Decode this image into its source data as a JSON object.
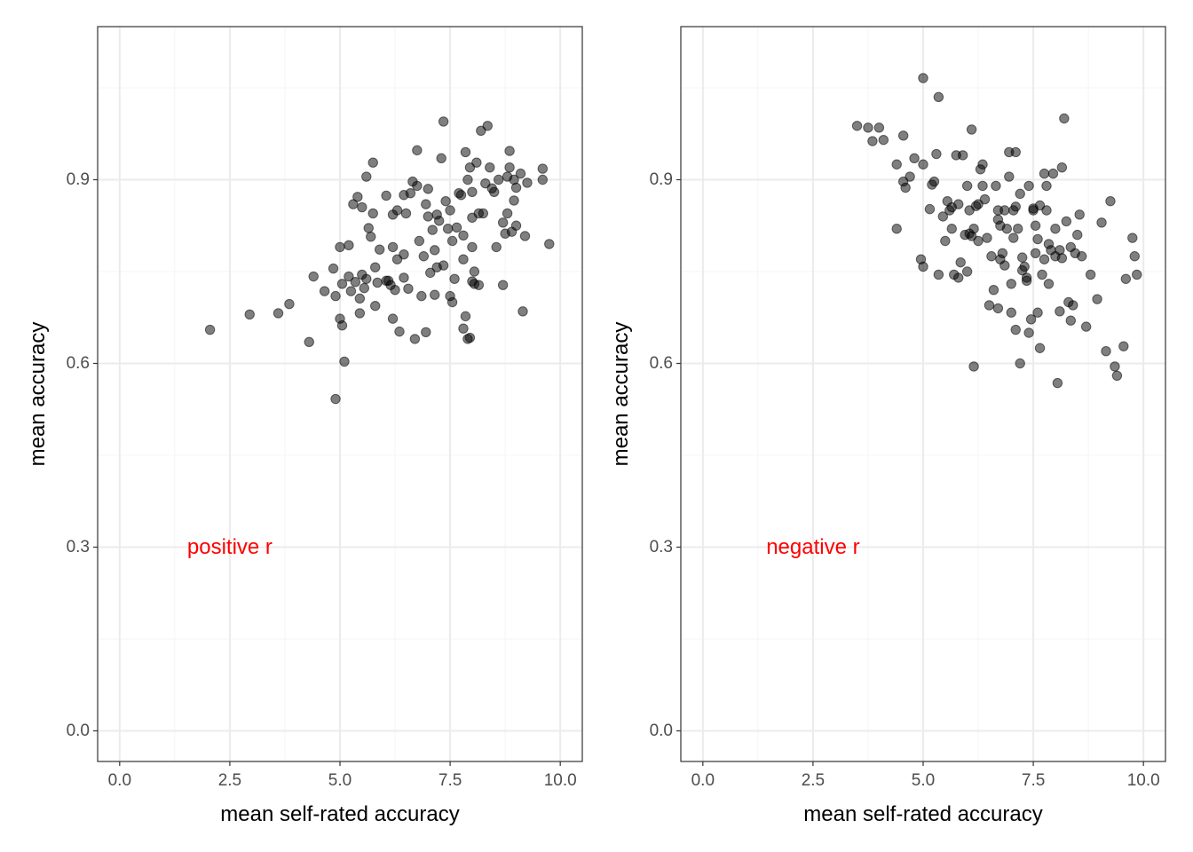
{
  "colors": {
    "panel_border": "#333333",
    "grid_major": "#ebebeb",
    "grid_minor": "#f5f5f5",
    "point_fill": "#000000",
    "annotation": "#ff0000"
  },
  "chart_data": [
    {
      "type": "scatter",
      "xlabel": "mean self-rated accuracy",
      "ylabel": "mean accuracy",
      "xlim": [
        -0.5,
        10.5
      ],
      "ylim": [
        -0.05,
        1.15
      ],
      "xticks": [
        "0.0",
        "2.5",
        "5.0",
        "7.5",
        "10.0"
      ],
      "yticks": [
        "0.0",
        "0.3",
        "0.6",
        "0.9"
      ],
      "grid": true,
      "annotation": {
        "text": "positive r",
        "x": 2.5,
        "y": 0.3
      },
      "points": [
        [
          2.05,
          0.655
        ],
        [
          2.95,
          0.68
        ],
        [
          3.6,
          0.682
        ],
        [
          3.85,
          0.697
        ],
        [
          4.3,
          0.635
        ],
        [
          4.4,
          0.742
        ],
        [
          4.65,
          0.718
        ],
        [
          4.85,
          0.755
        ],
        [
          4.9,
          0.71
        ],
        [
          4.9,
          0.542
        ],
        [
          5.0,
          0.79
        ],
        [
          5.0,
          0.673
        ],
        [
          5.05,
          0.73
        ],
        [
          5.05,
          0.662
        ],
        [
          5.1,
          0.603
        ],
        [
          5.2,
          0.793
        ],
        [
          5.2,
          0.742
        ],
        [
          5.25,
          0.718
        ],
        [
          5.3,
          0.86
        ],
        [
          5.35,
          0.733
        ],
        [
          5.4,
          0.872
        ],
        [
          5.45,
          0.706
        ],
        [
          5.45,
          0.682
        ],
        [
          5.5,
          0.745
        ],
        [
          5.5,
          0.855
        ],
        [
          5.55,
          0.723
        ],
        [
          5.6,
          0.905
        ],
        [
          5.6,
          0.738
        ],
        [
          5.65,
          0.821
        ],
        [
          5.7,
          0.807
        ],
        [
          5.75,
          0.928
        ],
        [
          5.75,
          0.845
        ],
        [
          5.8,
          0.694
        ],
        [
          5.8,
          0.757
        ],
        [
          5.85,
          0.732
        ],
        [
          5.9,
          0.786
        ],
        [
          6.05,
          0.874
        ],
        [
          6.1,
          0.735
        ],
        [
          6.15,
          0.728
        ],
        [
          6.2,
          0.843
        ],
        [
          6.2,
          0.79
        ],
        [
          6.2,
          0.673
        ],
        [
          6.25,
          0.72
        ],
        [
          6.3,
          0.85
        ],
        [
          6.3,
          0.77
        ],
        [
          6.35,
          0.652
        ],
        [
          6.45,
          0.875
        ],
        [
          6.45,
          0.778
        ],
        [
          6.45,
          0.74
        ],
        [
          6.5,
          0.845
        ],
        [
          6.55,
          0.722
        ],
        [
          6.6,
          0.878
        ],
        [
          6.65,
          0.897
        ],
        [
          6.7,
          0.64
        ],
        [
          6.75,
          0.948
        ],
        [
          6.75,
          0.89
        ],
        [
          6.8,
          0.8
        ],
        [
          6.85,
          0.71
        ],
        [
          6.9,
          0.775
        ],
        [
          6.95,
          0.651
        ],
        [
          6.95,
          0.86
        ],
        [
          7.0,
          0.885
        ],
        [
          7.0,
          0.84
        ],
        [
          7.05,
          0.748
        ],
        [
          7.1,
          0.818
        ],
        [
          7.15,
          0.712
        ],
        [
          7.15,
          0.785
        ],
        [
          7.2,
          0.757
        ],
        [
          7.2,
          0.843
        ],
        [
          7.25,
          0.833
        ],
        [
          7.3,
          0.935
        ],
        [
          7.35,
          0.995
        ],
        [
          7.35,
          0.76
        ],
        [
          7.4,
          0.865
        ],
        [
          7.45,
          0.82
        ],
        [
          7.5,
          0.85
        ],
        [
          7.55,
          0.7
        ],
        [
          7.55,
          0.8
        ],
        [
          7.6,
          0.738
        ],
        [
          7.65,
          0.822
        ],
        [
          7.7,
          0.878
        ],
        [
          7.75,
          0.875
        ],
        [
          7.8,
          0.657
        ],
        [
          7.8,
          0.77
        ],
        [
          7.8,
          0.809
        ],
        [
          7.85,
          0.945
        ],
        [
          7.85,
          0.677
        ],
        [
          7.9,
          0.9
        ],
        [
          7.9,
          0.64
        ],
        [
          7.95,
          0.642
        ],
        [
          7.95,
          0.92
        ],
        [
          8.0,
          0.88
        ],
        [
          8.0,
          0.838
        ],
        [
          8.0,
          0.79
        ],
        [
          8.0,
          0.734
        ],
        [
          8.05,
          0.73
        ],
        [
          8.05,
          0.75
        ],
        [
          8.1,
          0.928
        ],
        [
          8.15,
          0.845
        ],
        [
          8.15,
          0.728
        ],
        [
          8.2,
          0.98
        ],
        [
          8.25,
          0.845
        ],
        [
          8.3,
          0.894
        ],
        [
          8.35,
          0.988
        ],
        [
          8.4,
          0.92
        ],
        [
          8.45,
          0.886
        ],
        [
          8.5,
          0.88
        ],
        [
          8.55,
          0.79
        ],
        [
          8.6,
          0.9
        ],
        [
          8.7,
          0.728
        ],
        [
          8.7,
          0.83
        ],
        [
          8.75,
          0.812
        ],
        [
          8.8,
          0.905
        ],
        [
          8.8,
          0.845
        ],
        [
          8.85,
          0.947
        ],
        [
          8.85,
          0.92
        ],
        [
          8.9,
          0.815
        ],
        [
          8.95,
          0.866
        ],
        [
          8.95,
          0.9
        ],
        [
          9.0,
          0.887
        ],
        [
          9.0,
          0.825
        ],
        [
          9.1,
          0.91
        ],
        [
          9.15,
          0.685
        ],
        [
          9.2,
          0.808
        ],
        [
          9.25,
          0.895
        ],
        [
          9.6,
          0.918
        ],
        [
          9.6,
          0.9
        ],
        [
          9.75,
          0.795
        ],
        [
          6.05,
          0.735
        ],
        [
          7.5,
          0.71
        ]
      ]
    },
    {
      "type": "scatter",
      "xlabel": "mean self-rated accuracy",
      "ylabel": "mean accuracy",
      "xlim": [
        -0.5,
        10.5
      ],
      "ylim": [
        -0.05,
        1.15
      ],
      "xticks": [
        "0.0",
        "2.5",
        "5.0",
        "7.5",
        "10.0"
      ],
      "yticks": [
        "0.0",
        "0.3",
        "0.6",
        "0.9"
      ],
      "grid": true,
      "annotation": {
        "text": "negative r",
        "x": 2.5,
        "y": 0.3
      },
      "points": [
        [
          3.5,
          0.988
        ],
        [
          3.75,
          0.985
        ],
        [
          3.85,
          0.963
        ],
        [
          4.0,
          0.985
        ],
        [
          4.1,
          0.965
        ],
        [
          4.4,
          0.925
        ],
        [
          4.4,
          0.82
        ],
        [
          4.55,
          0.972
        ],
        [
          4.55,
          0.897
        ],
        [
          4.6,
          0.887
        ],
        [
          4.7,
          0.905
        ],
        [
          4.8,
          0.935
        ],
        [
          4.95,
          0.77
        ],
        [
          5.0,
          0.925
        ],
        [
          5.0,
          0.758
        ],
        [
          5.0,
          1.066
        ],
        [
          5.15,
          0.852
        ],
        [
          5.2,
          0.892
        ],
        [
          5.25,
          0.897
        ],
        [
          5.3,
          0.942
        ],
        [
          5.35,
          1.035
        ],
        [
          5.35,
          0.745
        ],
        [
          5.45,
          0.84
        ],
        [
          5.5,
          0.8
        ],
        [
          5.55,
          0.865
        ],
        [
          5.6,
          0.85
        ],
        [
          5.65,
          0.82
        ],
        [
          5.65,
          0.855
        ],
        [
          5.7,
          0.745
        ],
        [
          5.75,
          0.94
        ],
        [
          5.8,
          0.86
        ],
        [
          5.8,
          0.74
        ],
        [
          5.85,
          0.765
        ],
        [
          5.9,
          0.94
        ],
        [
          5.95,
          0.81
        ],
        [
          6.0,
          0.75
        ],
        [
          6.0,
          0.89
        ],
        [
          6.05,
          0.85
        ],
        [
          6.05,
          0.812
        ],
        [
          6.1,
          0.808
        ],
        [
          6.1,
          0.982
        ],
        [
          6.15,
          0.595
        ],
        [
          6.15,
          0.82
        ],
        [
          6.2,
          0.857
        ],
        [
          6.25,
          0.86
        ],
        [
          6.25,
          0.8
        ],
        [
          6.3,
          0.917
        ],
        [
          6.35,
          0.925
        ],
        [
          6.35,
          0.89
        ],
        [
          6.4,
          0.868
        ],
        [
          6.45,
          0.805
        ],
        [
          6.5,
          0.695
        ],
        [
          6.55,
          0.775
        ],
        [
          6.6,
          0.72
        ],
        [
          6.65,
          0.89
        ],
        [
          6.7,
          0.85
        ],
        [
          6.7,
          0.835
        ],
        [
          6.7,
          0.69
        ],
        [
          6.75,
          0.825
        ],
        [
          6.75,
          0.77
        ],
        [
          6.8,
          0.78
        ],
        [
          6.85,
          0.85
        ],
        [
          6.85,
          0.76
        ],
        [
          6.9,
          0.82
        ],
        [
          6.95,
          0.945
        ],
        [
          6.95,
          0.905
        ],
        [
          7.0,
          0.73
        ],
        [
          7.0,
          0.683
        ],
        [
          7.05,
          0.85
        ],
        [
          7.05,
          0.805
        ],
        [
          7.1,
          0.945
        ],
        [
          7.1,
          0.856
        ],
        [
          7.1,
          0.655
        ],
        [
          7.15,
          0.82
        ],
        [
          7.2,
          0.877
        ],
        [
          7.2,
          0.6
        ],
        [
          7.25,
          0.773
        ],
        [
          7.25,
          0.752
        ],
        [
          7.3,
          0.758
        ],
        [
          7.35,
          0.74
        ],
        [
          7.35,
          0.735
        ],
        [
          7.4,
          0.89
        ],
        [
          7.4,
          0.65
        ],
        [
          7.45,
          0.672
        ],
        [
          7.5,
          0.85
        ],
        [
          7.5,
          0.853
        ],
        [
          7.55,
          0.825
        ],
        [
          7.55,
          0.78
        ],
        [
          7.6,
          0.803
        ],
        [
          7.6,
          0.683
        ],
        [
          7.65,
          0.858
        ],
        [
          7.65,
          0.625
        ],
        [
          7.7,
          0.745
        ],
        [
          7.75,
          0.91
        ],
        [
          7.75,
          0.77
        ],
        [
          7.8,
          0.89
        ],
        [
          7.8,
          0.85
        ],
        [
          7.85,
          0.795
        ],
        [
          7.85,
          0.73
        ],
        [
          7.9,
          0.785
        ],
        [
          7.95,
          0.91
        ],
        [
          8.0,
          0.775
        ],
        [
          8.0,
          0.82
        ],
        [
          8.05,
          0.568
        ],
        [
          8.1,
          0.785
        ],
        [
          8.1,
          0.685
        ],
        [
          8.15,
          0.772
        ],
        [
          8.15,
          0.92
        ],
        [
          8.2,
          1.0
        ],
        [
          8.25,
          0.832
        ],
        [
          8.3,
          0.7
        ],
        [
          8.35,
          0.79
        ],
        [
          8.35,
          0.67
        ],
        [
          8.4,
          0.695
        ],
        [
          8.45,
          0.78
        ],
        [
          8.5,
          0.81
        ],
        [
          8.55,
          0.843
        ],
        [
          8.6,
          0.775
        ],
        [
          8.7,
          0.66
        ],
        [
          8.8,
          0.745
        ],
        [
          8.95,
          0.705
        ],
        [
          9.05,
          0.83
        ],
        [
          9.15,
          0.62
        ],
        [
          9.25,
          0.865
        ],
        [
          9.35,
          0.595
        ],
        [
          9.4,
          0.58
        ],
        [
          9.55,
          0.628
        ],
        [
          9.6,
          0.738
        ],
        [
          9.75,
          0.805
        ],
        [
          9.8,
          0.775
        ],
        [
          9.85,
          0.745
        ]
      ]
    }
  ]
}
